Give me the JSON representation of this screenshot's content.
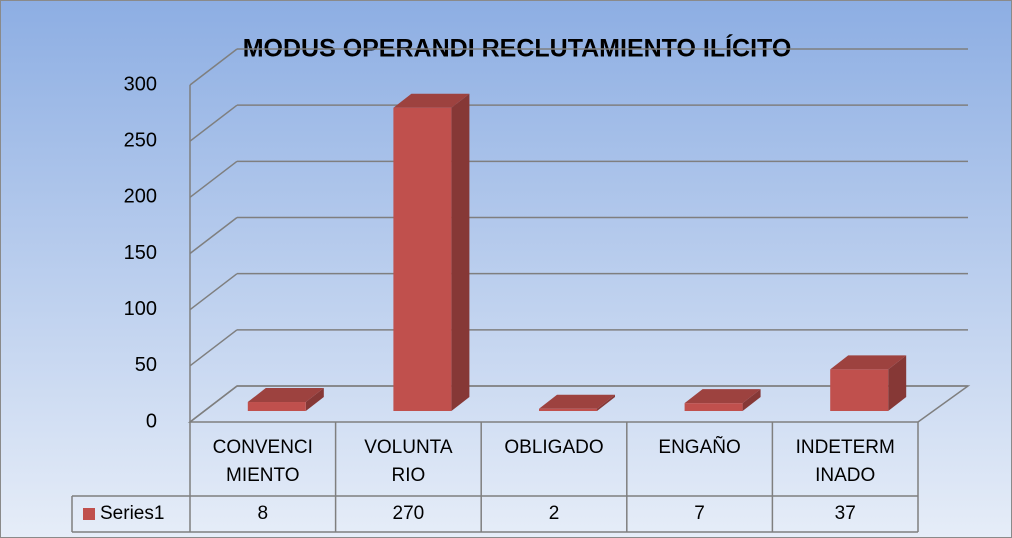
{
  "chart_data": {
    "type": "bar3d",
    "title": "MODUS OPERANDI RECLUTAMIENTO ILÍCITO",
    "categories": [
      "CONVENCI\nMIENTO",
      "VOLUNTA\nRIO",
      "OBLIGADO",
      "ENGAÑO",
      "INDETERM\nINADO"
    ],
    "series": [
      {
        "name": "Series1",
        "color": "#c0504d",
        "values": [
          8,
          270,
          2,
          7,
          37
        ]
      }
    ],
    "ylim": [
      0,
      300
    ],
    "yticks": [
      0,
      50,
      100,
      150,
      200,
      250,
      300
    ],
    "grid": true,
    "data_table": true
  }
}
